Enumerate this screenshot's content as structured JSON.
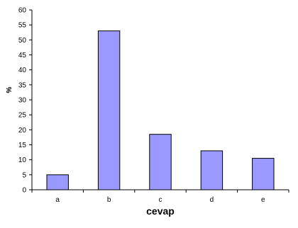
{
  "chart_data": {
    "type": "bar",
    "categories": [
      "a",
      "b",
      "c",
      "d",
      "e"
    ],
    "values": [
      5,
      53,
      18.5,
      13,
      10.5
    ],
    "title": "",
    "xlabel": "cevap",
    "ylabel": "%",
    "ylim": [
      0,
      60
    ],
    "yticks": [
      "0",
      "5",
      "10",
      "15",
      "20",
      "25",
      "30",
      "35",
      "40",
      "45",
      "50",
      "55",
      "60"
    ],
    "grid": false,
    "legend": "none",
    "bar_color": "#9999ff",
    "bar_stroke": "#000000"
  }
}
